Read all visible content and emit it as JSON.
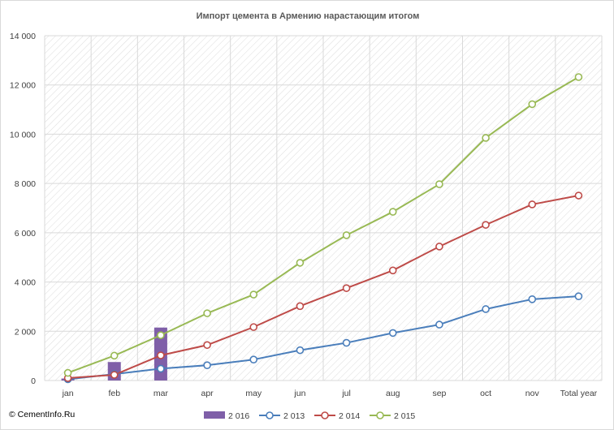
{
  "chart_data": {
    "type": "line",
    "title": "Импорт цемента в Армению нарастающим  итогом",
    "categories": [
      "jan",
      "feb",
      "mar",
      "apr",
      "may",
      "jun",
      "jul",
      "aug",
      "sep",
      "oct",
      "nov",
      "Total year"
    ],
    "y_tick_labels": [
      "0",
      "2 000",
      "4 000",
      "6 000",
      "8 000",
      "10 000",
      "12 000",
      "14 000"
    ],
    "ylim": [
      0,
      14000
    ],
    "y_step": 2000,
    "grid": true,
    "legend_position": "bottom",
    "bar_series": {
      "name": "2 016",
      "color": "#7f5fa8",
      "values": [
        80,
        750,
        2150
      ]
    },
    "series": [
      {
        "name": "2 013",
        "color": "#4a7ebb",
        "values": [
          50,
          260,
          480,
          620,
          850,
          1230,
          1530,
          1930,
          2270,
          2900,
          3300,
          3420
        ]
      },
      {
        "name": "2 014",
        "color": "#be4b48",
        "values": [
          100,
          230,
          1020,
          1440,
          2170,
          3020,
          3750,
          4470,
          5440,
          6320,
          7150,
          7510
        ]
      },
      {
        "name": "2 015",
        "color": "#98b954",
        "values": [
          310,
          1010,
          1840,
          2730,
          3490,
          4780,
          5900,
          6850,
          7970,
          9850,
          11220,
          12320
        ]
      }
    ]
  },
  "source_label": "© CementInfo.Ru"
}
